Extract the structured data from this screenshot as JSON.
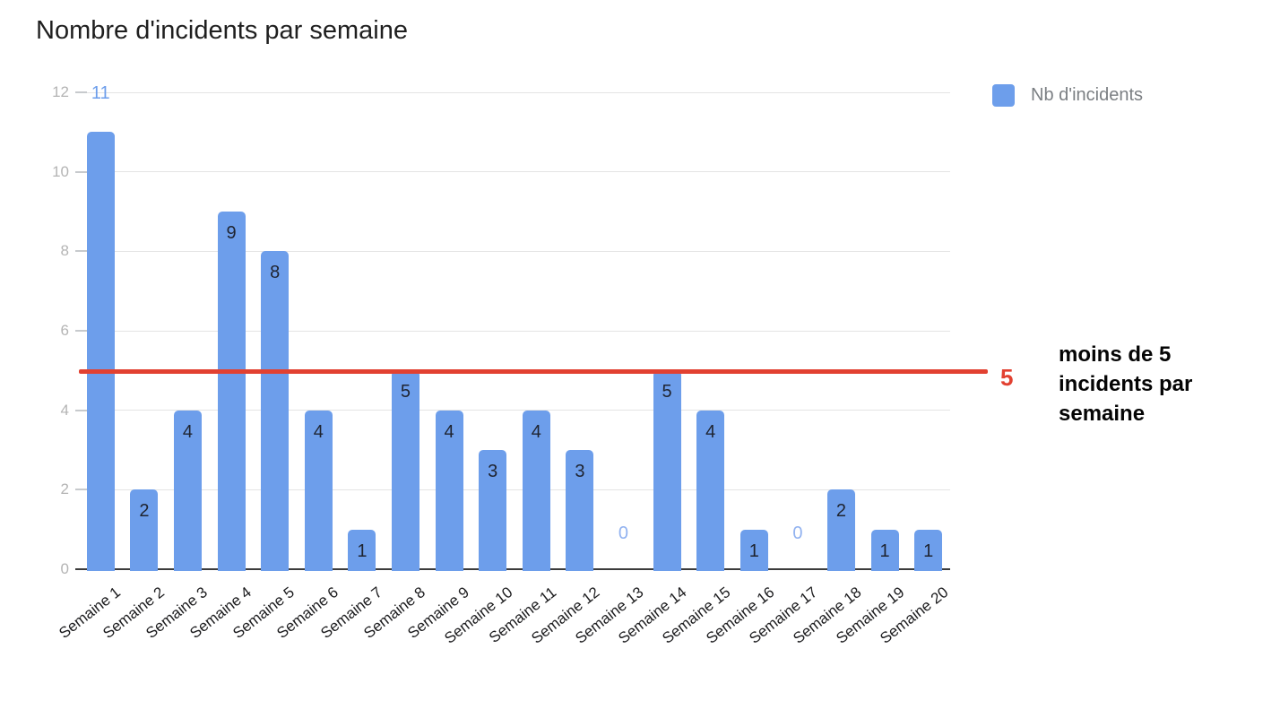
{
  "title": "Nombre d'incidents par semaine",
  "legend": {
    "label": "Nb d'incidents"
  },
  "annotation": {
    "text": "moins de 5 incidents par semaine"
  },
  "colors": {
    "bar": "#6d9eeb",
    "label_inside": "#1f2430",
    "label_outside": "#6d9eeb",
    "label_zero": "#91b2f0",
    "grid": "#e4e4e4",
    "y_tick_text": "#b4b4b4",
    "x_tick_text": "#1c1c1e",
    "axis_line": "#3b3b3b",
    "threshold": "#e24131"
  },
  "chart_data": {
    "type": "bar",
    "title": "Nombre d'incidents par semaine",
    "categories": [
      "Semaine 1",
      "Semaine 2",
      "Semaine 3",
      "Semaine 4",
      "Semaine 5",
      "Semaine 6",
      "Semaine 7",
      "Semaine 8",
      "Semaine 9",
      "Semaine 10",
      "Semaine 11",
      "Semaine 12",
      "Semaine 13",
      "Semaine 14",
      "Semaine 15",
      "Semaine 16",
      "Semaine 17",
      "Semaine 18",
      "Semaine 19",
      "Semaine 20"
    ],
    "series": [
      {
        "name": "Nb d'incidents",
        "values": [
          11,
          2,
          4,
          9,
          8,
          4,
          1,
          5,
          4,
          3,
          4,
          3,
          0,
          5,
          4,
          1,
          0,
          2,
          1,
          1
        ]
      }
    ],
    "ylim": [
      0,
      12
    ],
    "yticks": [
      0,
      2,
      4,
      6,
      8,
      10,
      12
    ],
    "grid": true,
    "legend_position": "top-right",
    "data_labels": true,
    "reference_line": {
      "value": 5,
      "label": "5",
      "color": "#e24131",
      "annotation": "moins de 5 incidents par semaine"
    }
  }
}
